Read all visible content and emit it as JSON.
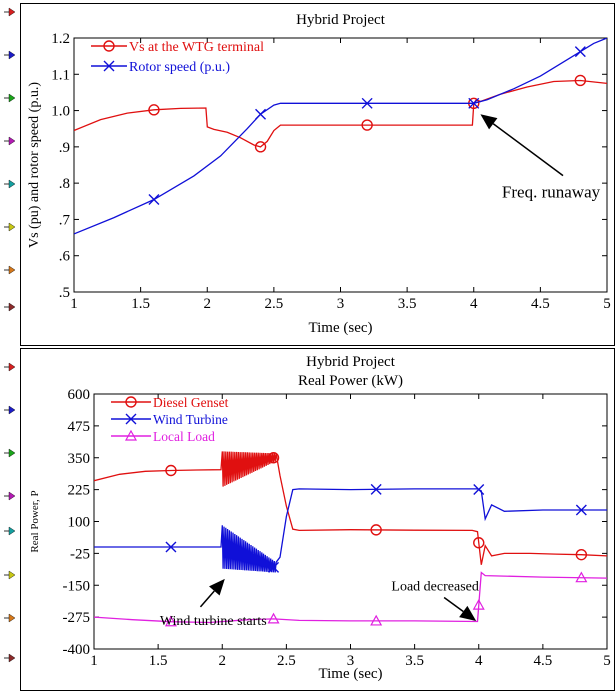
{
  "side_markers": [
    {
      "panel": 0,
      "color": "#d62020"
    },
    {
      "panel": 0,
      "color": "#1c1cc8"
    },
    {
      "panel": 0,
      "color": "#1aa51a"
    },
    {
      "panel": 0,
      "color": "#b41ab4"
    },
    {
      "panel": 0,
      "color": "#14a0a0"
    },
    {
      "panel": 0,
      "color": "#c8c814"
    },
    {
      "panel": 0,
      "color": "#d6781a"
    },
    {
      "panel": 0,
      "color": "#8c2a2a"
    },
    {
      "panel": 1,
      "color": "#d62020"
    },
    {
      "panel": 1,
      "color": "#1c1cc8"
    },
    {
      "panel": 1,
      "color": "#1aa51a"
    },
    {
      "panel": 1,
      "color": "#b41ab4"
    },
    {
      "panel": 1,
      "color": "#14a0a0"
    },
    {
      "panel": 1,
      "color": "#c8c814"
    },
    {
      "panel": 1,
      "color": "#d6781a"
    },
    {
      "panel": 1,
      "color": "#8c2a2a"
    }
  ],
  "chart_data": [
    {
      "type": "line",
      "title": "Hybrid Project",
      "xlabel": "Time (sec)",
      "ylabel": "Vs (pu) and rotor speed (p.u.)",
      "xlim": [
        1,
        5
      ],
      "ylim": [
        0.5,
        1.2
      ],
      "xticks": [
        1,
        1.5,
        2,
        2.5,
        3,
        3.5,
        4,
        4.5,
        5
      ],
      "xtick_labels": [
        "1",
        "1.5",
        "2",
        "2.5",
        "3",
        "3.5",
        "4",
        "4.5",
        "5"
      ],
      "yticks": [
        0.5,
        0.6,
        0.7,
        0.8,
        0.9,
        1.0,
        1.1,
        1.2
      ],
      "ytick_labels": [
        ".5",
        ".6",
        ".7",
        ".8",
        ".9",
        "1.0",
        "1.1",
        "1.2"
      ],
      "legend_position": "top-left",
      "series": [
        {
          "name": "Vs at the WTG terminal",
          "color": "#e01010",
          "marker": "circle",
          "x": [
            1.0,
            1.2,
            1.4,
            1.6,
            1.8,
            1.99,
            2.0,
            2.05,
            2.15,
            2.25,
            2.35,
            2.4,
            2.45,
            2.5,
            2.55,
            3.0,
            3.5,
            3.99,
            4.0,
            4.02,
            4.05,
            4.2,
            4.4,
            4.6,
            4.8,
            5.0
          ],
          "y": [
            0.945,
            0.975,
            0.993,
            1.002,
            1.006,
            1.007,
            0.955,
            0.948,
            0.94,
            0.925,
            0.905,
            0.9,
            0.915,
            0.945,
            0.96,
            0.96,
            0.96,
            0.96,
            1.02,
            1.03,
            1.025,
            1.045,
            1.065,
            1.08,
            1.083,
            1.075
          ],
          "marker_x": [
            1.6,
            2.4,
            3.2,
            4.0,
            4.8
          ]
        },
        {
          "name": "Rotor speed (p.u.)",
          "color": "#1010d8",
          "marker": "x",
          "x": [
            1.0,
            1.3,
            1.6,
            1.9,
            2.1,
            2.3,
            2.4,
            2.5,
            2.55,
            3.0,
            3.5,
            4.0,
            4.1,
            4.3,
            4.5,
            4.7,
            4.9,
            5.0
          ],
          "y": [
            0.66,
            0.705,
            0.755,
            0.82,
            0.875,
            0.95,
            0.99,
            1.015,
            1.02,
            1.02,
            1.02,
            1.02,
            1.03,
            1.06,
            1.095,
            1.14,
            1.185,
            1.2
          ],
          "marker_x": [
            1.6,
            2.4,
            3.2,
            4.0,
            4.8
          ]
        }
      ],
      "annotations": [
        {
          "text": "Freq. runaway",
          "x": 4.58,
          "y": 0.76,
          "arrow_to": [
            4.05,
            0.99
          ]
        }
      ]
    },
    {
      "type": "line",
      "title": "Hybrid Project",
      "subtitle": "Real Power (kW)",
      "xlabel": "Time (sec)",
      "ylabel": "Real Power, P",
      "xlim": [
        1,
        5
      ],
      "ylim": [
        -400,
        600
      ],
      "xticks": [
        1,
        1.5,
        2,
        2.5,
        3,
        3.5,
        4,
        4.5,
        5
      ],
      "xtick_labels": [
        "1",
        "1.5",
        "2",
        "2.5",
        "3",
        "3.5",
        "4",
        "4.5",
        "5"
      ],
      "yticks": [
        -400,
        -275,
        -150,
        -25,
        100,
        225,
        350,
        475,
        600
      ],
      "ytick_labels": [
        "-400",
        "-275",
        "-150",
        "-25",
        "100",
        "225",
        "350",
        "475",
        "600"
      ],
      "legend_position": "top-left",
      "series": [
        {
          "name": "Diesel Genset",
          "color": "#e01010",
          "marker": "circle",
          "x": [
            1.0,
            1.2,
            1.4,
            1.6,
            1.8,
            1.99,
            2.4,
            2.45,
            2.5,
            2.55,
            2.6,
            3.0,
            3.5,
            3.95,
            3.99,
            4.02,
            4.05,
            4.1,
            4.2,
            4.4,
            4.6,
            4.8,
            5.0
          ],
          "y": [
            260,
            285,
            297,
            300,
            302,
            303,
            350,
            280,
            160,
            70,
            65,
            68,
            66,
            65,
            60,
            -70,
            5,
            -35,
            -25,
            -25,
            -28,
            -30,
            -35
          ],
          "marker_x": [
            1.6,
            2.4,
            3.2,
            4.0,
            4.8
          ],
          "oscillation": {
            "x_start": 2.0,
            "x_end": 2.42,
            "center_start": 305,
            "center_end": 352,
            "amp_start": 70,
            "amp_end": 15
          }
        },
        {
          "name": "Wind Turbine",
          "color": "#1010d8",
          "marker": "x",
          "x": [
            1.0,
            1.5,
            1.99,
            2.4,
            2.45,
            2.5,
            2.55,
            2.6,
            3.0,
            3.5,
            3.99,
            4.02,
            4.05,
            4.1,
            4.2,
            4.5,
            5.0
          ],
          "y": [
            0,
            0,
            0,
            -80,
            -40,
            120,
            225,
            228,
            225,
            228,
            228,
            220,
            110,
            165,
            140,
            145,
            145
          ],
          "marker_x": [
            1.6,
            2.4,
            3.2,
            4.0,
            4.8
          ],
          "oscillation": {
            "x_start": 2.0,
            "x_end": 2.42,
            "center_start": 0,
            "center_end": -80,
            "amp_start": 85,
            "amp_end": 20
          }
        },
        {
          "name": "Local Load",
          "color": "#e020e0",
          "marker": "triangle",
          "x": [
            1.0,
            1.3,
            1.6,
            1.9,
            2.2,
            2.4,
            2.6,
            3.0,
            3.5,
            3.99,
            4.02,
            4.05,
            4.5,
            5.0
          ],
          "y": [
            -275,
            -285,
            -293,
            -296,
            -285,
            -282,
            -288,
            -290,
            -290,
            -292,
            -100,
            -112,
            -118,
            -122
          ],
          "marker_x": [
            1.6,
            2.4,
            3.2,
            4.0,
            4.8
          ]
        }
      ],
      "annotations": [
        {
          "text": "Wind turbine starts",
          "x": 1.93,
          "y": -305,
          "arrow_from": [
            1.83,
            -235
          ],
          "arrow_to": [
            2.02,
            -125
          ]
        },
        {
          "text": "Load decreased",
          "x": 3.66,
          "y": -170,
          "arrow_from": [
            3.73,
            -198
          ],
          "arrow_to": [
            3.98,
            -290
          ]
        }
      ]
    }
  ]
}
